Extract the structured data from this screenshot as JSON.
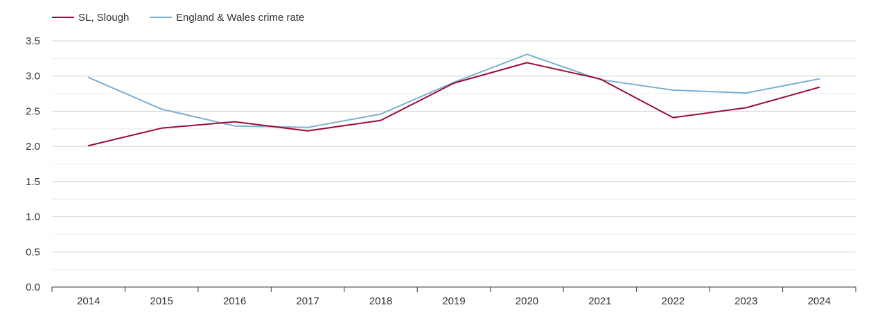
{
  "chart_data": {
    "type": "line",
    "title": "",
    "xlabel": "",
    "ylabel": "",
    "categories": [
      "2014",
      "2015",
      "2016",
      "2017",
      "2018",
      "2019",
      "2020",
      "2021",
      "2022",
      "2023",
      "2024"
    ],
    "ylim": [
      0,
      3.5
    ],
    "yticks": [
      0.0,
      0.5,
      1.0,
      1.5,
      2.0,
      2.5,
      3.0,
      3.5
    ],
    "ytick_labels": [
      "0.0",
      "0.5",
      "1.0",
      "1.5",
      "2.0",
      "2.5",
      "3.0",
      "3.5"
    ],
    "grid": true,
    "legend_position": "top-left",
    "series": [
      {
        "name": "SL, Slough",
        "color": "#9b0a35",
        "values": [
          2.01,
          2.26,
          2.35,
          2.22,
          2.37,
          2.9,
          3.19,
          2.96,
          2.41,
          2.55,
          2.84
        ]
      },
      {
        "name": "England & Wales crime rate",
        "color": "#7ab0d0",
        "values": [
          2.98,
          2.53,
          2.29,
          2.27,
          2.46,
          2.91,
          3.31,
          2.95,
          2.8,
          2.76,
          2.96
        ]
      }
    ]
  }
}
